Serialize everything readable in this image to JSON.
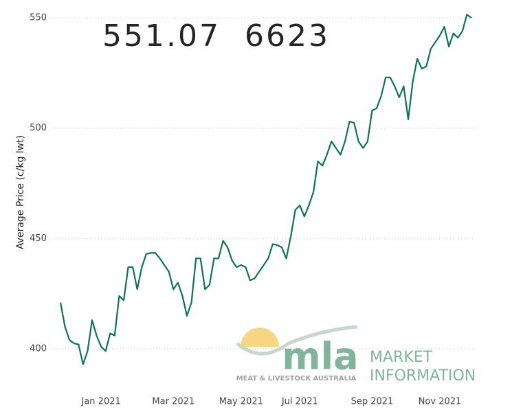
{
  "kpis": [
    "551.07",
    "6623"
  ],
  "logo": {
    "brand": "mla",
    "tagline": "MEAT & LIVESTOCK AUSTRALIA",
    "line1": "MARKET",
    "line2": "INFORMATION"
  },
  "chart_data": {
    "type": "line",
    "y_label": "Average Price (c/kg lwt)",
    "categories": [
      null,
      null,
      null,
      null,
      null,
      null,
      null,
      null,
      null,
      "Jan 2021",
      null,
      null,
      null,
      null,
      null,
      null,
      null,
      null,
      null,
      null,
      null,
      null,
      null,
      null,
      null,
      "Mar 2021",
      null,
      null,
      null,
      null,
      null,
      null,
      null,
      null,
      null,
      null,
      null,
      null,
      null,
      null,
      "May 2021",
      null,
      null,
      null,
      null,
      null,
      null,
      null,
      null,
      null,
      null,
      null,
      null,
      "Jul 2021",
      null,
      null,
      null,
      null,
      null,
      null,
      null,
      null,
      null,
      null,
      null,
      null,
      null,
      null,
      null,
      "Sep 2021",
      null,
      null,
      null,
      null,
      null,
      null,
      null,
      null,
      null,
      null,
      null,
      null,
      null,
      null,
      "Nov 2021",
      null,
      null,
      null,
      null,
      null,
      null,
      null
    ],
    "series": [
      {
        "name": "Average Price",
        "color": "#0b7451",
        "values": [
          421,
          410,
          404,
          402.5,
          402,
          393,
          399,
          413,
          406,
          401,
          399,
          407,
          406,
          424,
          422,
          437,
          437,
          427,
          437,
          443,
          443.5,
          443.5,
          441,
          438,
          435,
          427,
          430,
          424,
          415,
          421,
          441,
          441,
          427,
          429,
          441,
          441,
          449,
          446,
          440,
          437,
          438,
          437,
          431,
          432,
          435,
          438,
          441,
          447.5,
          447,
          446,
          441,
          451,
          463,
          465,
          460,
          465,
          471,
          485,
          483,
          488,
          494,
          491,
          488,
          494,
          503,
          502.5,
          494,
          491,
          494,
          508,
          509,
          514.5,
          523,
          523,
          519,
          514,
          519,
          504,
          521,
          531.5,
          527,
          528,
          536,
          539,
          542,
          546,
          537,
          543,
          541,
          544,
          551.5,
          550
        ]
      }
    ],
    "ylim": [
      388,
      555
    ],
    "yticks": [
      400,
      450,
      500,
      550
    ],
    "grid": true
  }
}
